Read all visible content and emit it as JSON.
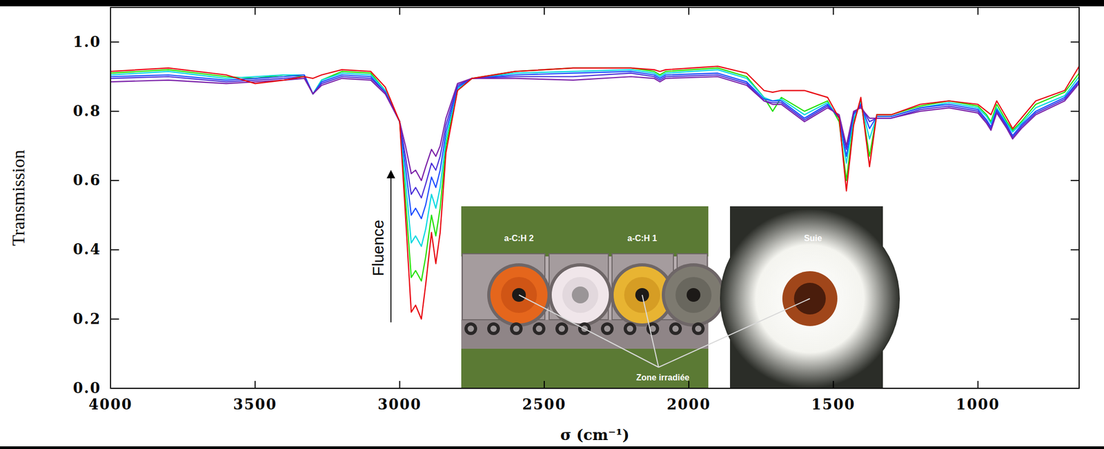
{
  "chart_data": {
    "type": "line",
    "x_label": "σ (cm⁻¹)",
    "y_label": "Transmission",
    "annotations": [
      "Fluence",
      "a-C:H 2",
      "a-C:H 1",
      "Zone irradiée",
      "Suie"
    ],
    "xlim": [
      4000,
      650
    ],
    "xticks": [
      4000,
      3500,
      3000,
      2500,
      2000,
      1500,
      1000
    ],
    "ylim": [
      0,
      1.1
    ],
    "yticks": [
      {
        "value": 0,
        "label": "0.0"
      },
      0.2,
      0.4,
      0.6,
      0.8,
      {
        "value": 1,
        "label": "1.0"
      }
    ],
    "x": [
      4000,
      3800,
      3600,
      3500,
      3400,
      3330,
      3300,
      3270,
      3200,
      3100,
      3050,
      3000,
      2980,
      2960,
      2945,
      2925,
      2910,
      2890,
      2875,
      2860,
      2840,
      2800,
      2750,
      2600,
      2400,
      2200,
      2120,
      2100,
      2080,
      1900,
      1800,
      1740,
      1710,
      1680,
      1600,
      1520,
      1480,
      1455,
      1430,
      1405,
      1375,
      1350,
      1300,
      1200,
      1100,
      1000,
      970,
      955,
      935,
      900,
      880,
      850,
      800,
      700,
      650
    ],
    "series": [
      {
        "color": "#22e000",
        "values": [
          0.91,
          0.92,
          0.9,
          0.895,
          0.905,
          0.9,
          0.85,
          0.89,
          0.915,
          0.91,
          0.86,
          0.77,
          0.55,
          0.32,
          0.34,
          0.31,
          0.38,
          0.5,
          0.44,
          0.52,
          0.7,
          0.86,
          0.895,
          0.915,
          0.925,
          0.925,
          0.915,
          0.905,
          0.915,
          0.925,
          0.9,
          0.84,
          0.8,
          0.84,
          0.8,
          0.83,
          0.77,
          0.6,
          0.77,
          0.83,
          0.67,
          0.79,
          0.79,
          0.815,
          0.83,
          0.815,
          0.79,
          0.77,
          0.82,
          0.77,
          0.745,
          0.77,
          0.82,
          0.855,
          0.91
        ]
      },
      {
        "color": "#00d8e0",
        "values": [
          0.905,
          0.915,
          0.895,
          0.9,
          0.905,
          0.905,
          0.85,
          0.89,
          0.91,
          0.905,
          0.86,
          0.77,
          0.6,
          0.42,
          0.44,
          0.41,
          0.46,
          0.56,
          0.52,
          0.58,
          0.72,
          0.865,
          0.895,
          0.91,
          0.915,
          0.92,
          0.91,
          0.9,
          0.91,
          0.92,
          0.895,
          0.84,
          0.83,
          0.835,
          0.79,
          0.825,
          0.78,
          0.65,
          0.78,
          0.825,
          0.72,
          0.785,
          0.785,
          0.81,
          0.825,
          0.81,
          0.785,
          0.765,
          0.81,
          0.765,
          0.74,
          0.765,
          0.81,
          0.845,
          0.9
        ]
      },
      {
        "color": "#1a4cff",
        "values": [
          0.9,
          0.905,
          0.89,
          0.895,
          0.9,
          0.905,
          0.85,
          0.885,
          0.905,
          0.9,
          0.855,
          0.77,
          0.64,
          0.5,
          0.52,
          0.49,
          0.53,
          0.61,
          0.58,
          0.63,
          0.74,
          0.87,
          0.895,
          0.905,
          0.91,
          0.915,
          0.905,
          0.895,
          0.905,
          0.91,
          0.885,
          0.835,
          0.83,
          0.83,
          0.78,
          0.82,
          0.78,
          0.67,
          0.79,
          0.82,
          0.75,
          0.785,
          0.785,
          0.81,
          0.82,
          0.805,
          0.775,
          0.755,
          0.805,
          0.76,
          0.73,
          0.76,
          0.8,
          0.84,
          0.89
        ]
      },
      {
        "color": "#4a2fd8",
        "values": [
          0.895,
          0.9,
          0.885,
          0.89,
          0.895,
          0.9,
          0.85,
          0.88,
          0.9,
          0.895,
          0.855,
          0.77,
          0.67,
          0.56,
          0.58,
          0.55,
          0.59,
          0.65,
          0.63,
          0.67,
          0.76,
          0.875,
          0.895,
          0.9,
          0.9,
          0.91,
          0.9,
          0.89,
          0.9,
          0.905,
          0.88,
          0.83,
          0.825,
          0.825,
          0.775,
          0.815,
          0.785,
          0.69,
          0.795,
          0.815,
          0.77,
          0.78,
          0.78,
          0.805,
          0.815,
          0.8,
          0.77,
          0.75,
          0.8,
          0.755,
          0.725,
          0.755,
          0.795,
          0.835,
          0.885
        ]
      },
      {
        "color": "#7a1fa8",
        "values": [
          0.885,
          0.89,
          0.88,
          0.885,
          0.89,
          0.895,
          0.85,
          0.875,
          0.895,
          0.89,
          0.85,
          0.77,
          0.7,
          0.62,
          0.63,
          0.6,
          0.64,
          0.69,
          0.67,
          0.7,
          0.78,
          0.88,
          0.895,
          0.895,
          0.89,
          0.9,
          0.895,
          0.885,
          0.895,
          0.9,
          0.875,
          0.83,
          0.82,
          0.82,
          0.77,
          0.81,
          0.79,
          0.7,
          0.8,
          0.81,
          0.78,
          0.78,
          0.78,
          0.8,
          0.81,
          0.795,
          0.765,
          0.745,
          0.795,
          0.75,
          0.72,
          0.75,
          0.79,
          0.83,
          0.88
        ]
      },
      {
        "color": "#e8000b",
        "values": [
          0.915,
          0.925,
          0.905,
          0.88,
          0.89,
          0.9,
          0.895,
          0.905,
          0.92,
          0.915,
          0.87,
          0.77,
          0.5,
          0.22,
          0.24,
          0.2,
          0.3,
          0.45,
          0.36,
          0.45,
          0.68,
          0.86,
          0.895,
          0.915,
          0.925,
          0.925,
          0.92,
          0.915,
          0.92,
          0.93,
          0.91,
          0.86,
          0.855,
          0.86,
          0.86,
          0.84,
          0.78,
          0.57,
          0.76,
          0.84,
          0.64,
          0.79,
          0.79,
          0.82,
          0.83,
          0.82,
          0.8,
          0.79,
          0.83,
          0.78,
          0.75,
          0.78,
          0.83,
          0.86,
          0.93
        ]
      }
    ]
  }
}
